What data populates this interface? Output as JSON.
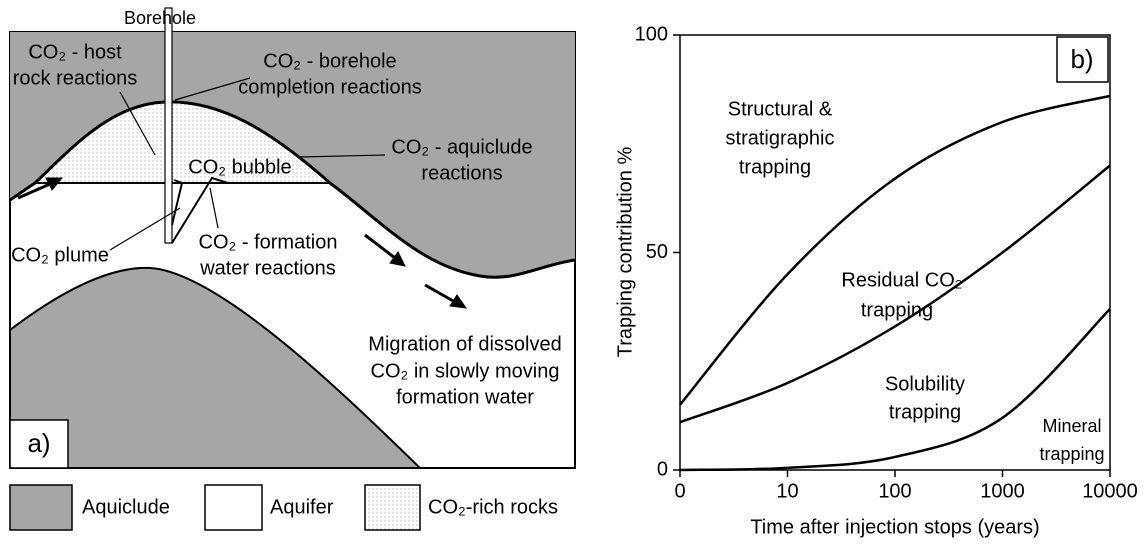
{
  "diagram": {
    "borehole": "Borehole",
    "host_rock": [
      "CO₂ - host",
      "rock reactions"
    ],
    "completion": [
      "CO₂ - borehole",
      "completion reactions"
    ],
    "bubble": "CO₂ bubble",
    "aquiclude_reactions": [
      "CO₂ - aquiclude",
      "reactions"
    ],
    "plume": "CO₂ plume",
    "formation_water": [
      "CO₂ - formation",
      "water reactions"
    ],
    "migration": [
      "Migration of dissolved",
      "CO₂ in slowly moving",
      "formation water"
    ],
    "panel_label": "a)",
    "legend": [
      "Aquiclude",
      "Aquifer",
      "CO₂-rich rocks"
    ]
  },
  "chart_data": {
    "type": "line",
    "panel_label": "b)",
    "x_label": "Time after injection stops (years)",
    "y_label": "Trapping contribution %",
    "categories": [
      "0",
      "10",
      "100",
      "1000",
      "10000"
    ],
    "series": [
      {
        "color": "#000000",
        "values": [
          15,
          45,
          67,
          80,
          86
        ]
      },
      {
        "color": "#000000",
        "values": [
          11,
          20,
          33,
          50,
          70
        ]
      },
      {
        "color": "#000000",
        "values": [
          0,
          0.5,
          3,
          12,
          37
        ]
      }
    ],
    "ylim": [
      0,
      100
    ],
    "yticks": [
      0,
      50,
      100
    ],
    "grid": false,
    "annotations": [
      [
        "Structural &",
        "stratigraphic",
        "trapping"
      ],
      [
        "Residual CO₂",
        "trapping"
      ],
      [
        "Solubility",
        "trapping"
      ],
      [
        "Mineral",
        "trapping"
      ]
    ]
  }
}
